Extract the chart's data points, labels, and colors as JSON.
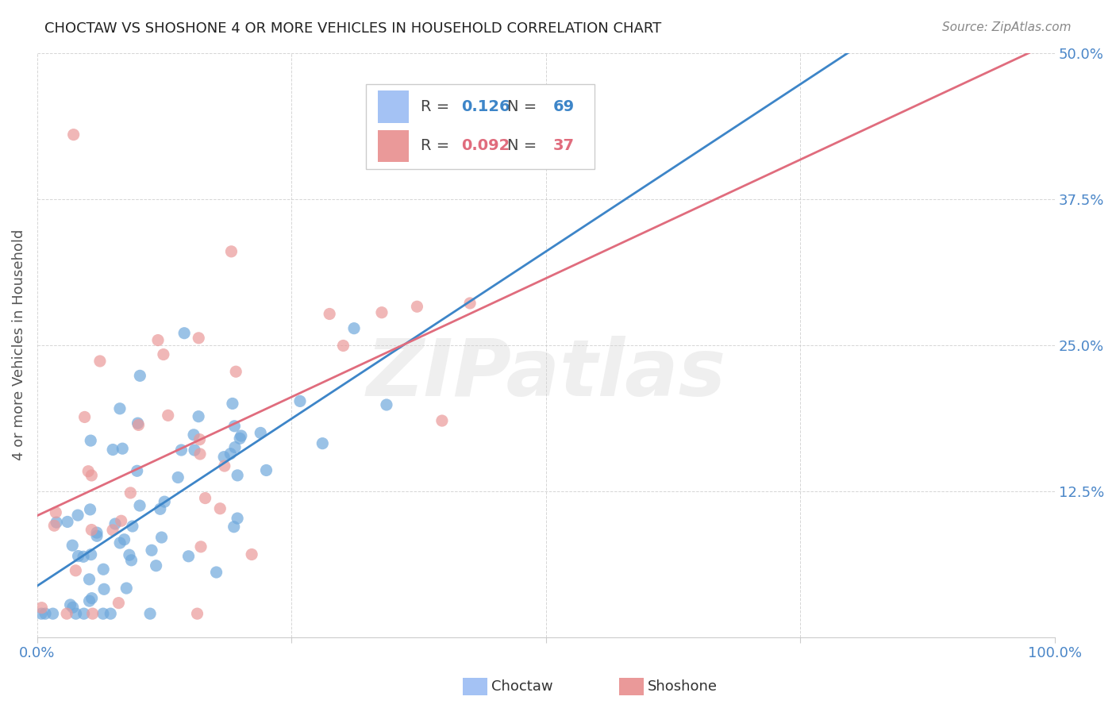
{
  "title": "CHOCTAW VS SHOSHONE 4 OR MORE VEHICLES IN HOUSEHOLD CORRELATION CHART",
  "source": "Source: ZipAtlas.com",
  "ylabel": "4 or more Vehicles in Household",
  "xlim": [
    0.0,
    1.0
  ],
  "ylim": [
    0.0,
    0.5
  ],
  "xticks": [
    0.0,
    0.25,
    0.5,
    0.75,
    1.0
  ],
  "xticklabels": [
    "0.0%",
    "",
    "",
    "",
    "100.0%"
  ],
  "yticks": [
    0.0,
    0.125,
    0.25,
    0.375,
    0.5
  ],
  "yticklabels": [
    "",
    "12.5%",
    "25.0%",
    "37.5%",
    "50.0%"
  ],
  "choctaw_color": "#6fa8dc",
  "shoshone_color": "#ea9999",
  "choctaw_line_color": "#3d85c8",
  "shoshone_line_color": "#e06c7d",
  "legend_box_choctaw": "#a4c2f4",
  "legend_box_shoshone": "#ea9999",
  "R_choctaw": 0.126,
  "N_choctaw": 69,
  "R_shoshone": 0.092,
  "N_shoshone": 37,
  "watermark_text": "ZIPatlas",
  "background_color": "#ffffff",
  "grid_color": "#cccccc",
  "tick_color": "#4a86c8",
  "axis_label_color": "#555555",
  "title_color": "#222222",
  "source_color": "#888888"
}
